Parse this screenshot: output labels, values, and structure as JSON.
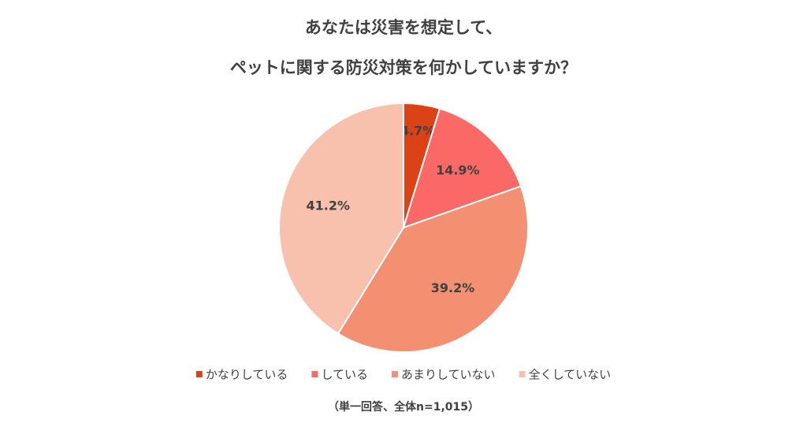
{
  "chart_data": {
    "type": "pie",
    "title": [
      "あなたは災害を想定して、",
      "ペットに関する防災対策を何かしていますか？"
    ],
    "categories": [
      "かなりしている",
      "している",
      "あまりしていない",
      "全くしていない"
    ],
    "values": [
      4.7,
      14.9,
      39.2,
      41.2
    ],
    "value_labels": [
      "4.7%",
      "14.9%",
      "39.2%",
      "41.2%"
    ],
    "colors": [
      "#db4316",
      "#fb6967",
      "#f29071",
      "#f7c1ae"
    ],
    "note": "（単一回答、全体n=1,015）"
  }
}
